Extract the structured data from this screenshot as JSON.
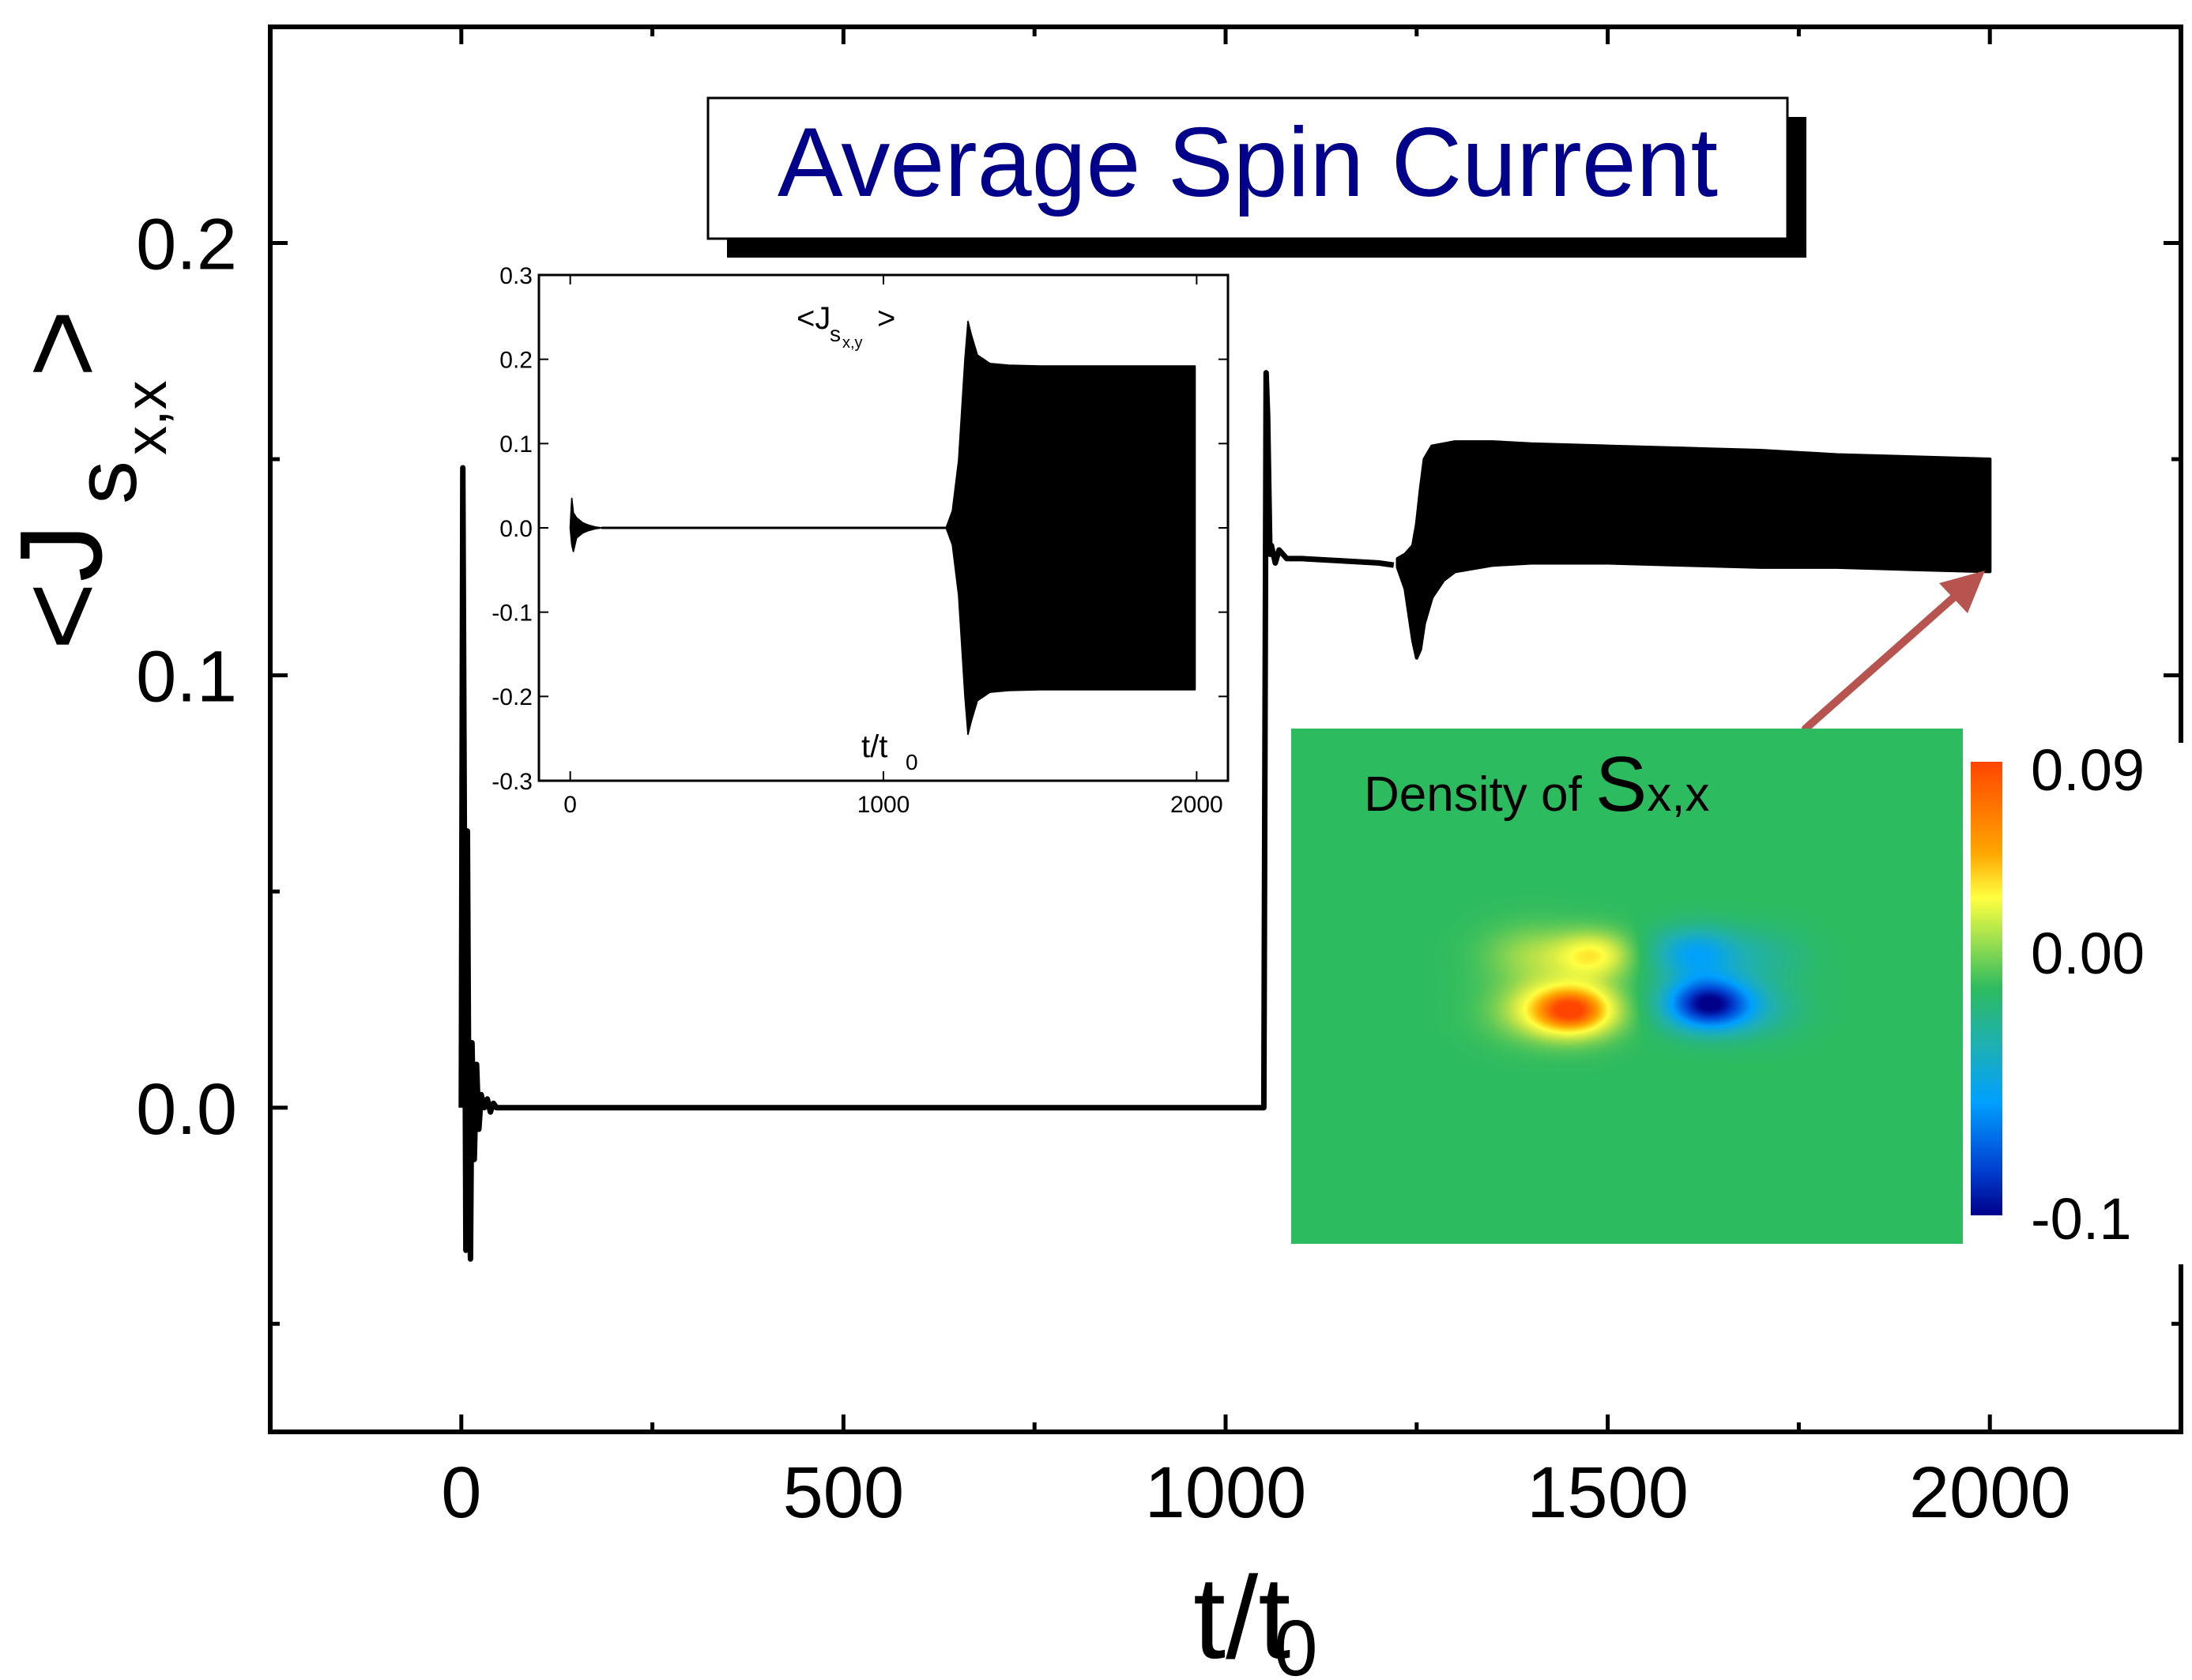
{
  "chart_data": [
    {
      "type": "line",
      "role": "main",
      "title": "Average Spin Current",
      "xlabel": "t/t",
      "xlabel_sub": "0",
      "ylabel": "<J",
      "ylabel_sub": "s",
      "ylabel_subsub": "x,x",
      "ylabel_close": ">",
      "xlim": [
        -250,
        2250
      ],
      "ylim": [
        -0.075,
        0.25
      ],
      "xticks": [
        0,
        500,
        1000,
        1500,
        2000
      ],
      "xtick_labels": [
        "0",
        "500",
        "1000",
        "1500",
        "2000"
      ],
      "yticks": [
        0.0,
        0.1,
        0.2
      ],
      "ytick_labels": [
        "0.0",
        "0.1",
        "0.2"
      ],
      "y_minor_ticks": [
        -0.05,
        0.05,
        0.15
      ],
      "x_minor_ticks": [
        250,
        750,
        1250,
        1750
      ],
      "series": [
        {
          "name": "<Js x,x>",
          "color": "#000000",
          "segments": [
            {
              "kind": "line",
              "x": [
                0,
                2,
                4,
                6,
                8,
                10,
                12,
                14,
                17,
                20,
                23,
                26,
                30,
                34,
                38,
                42,
                46,
                50,
                55,
                60,
                70,
                80,
                100,
                150,
                500,
                900,
                1040,
                1045,
                1048,
                1050,
                1053,
                1055,
                1058,
                1060,
                1065,
                1070,
                1080,
                1100,
                1150,
                1200,
                1220
              ],
              "y": [
                0.0,
                0.148,
                0.06,
                -0.033,
                0.064,
                -0.01,
                -0.035,
                0.015,
                -0.012,
                0.01,
                -0.005,
                0.003,
                0.0,
                0.002,
                -0.001,
                0.001,
                0.0,
                0.0,
                0.0,
                0.0,
                0.0,
                0.0,
                0.0,
                0.0,
                0.0,
                0.0,
                0.0,
                0.0,
                0.0,
                0.0,
                0.17,
                0.16,
                0.128,
                0.13,
                0.126,
                0.129,
                0.127,
                0.127,
                0.1265,
                0.126,
                0.1255
              ]
            },
            {
              "kind": "band",
              "x": [
                1225,
                1235,
                1245,
                1250,
                1255,
                1260,
                1270,
                1285,
                1300,
                1350,
                1400,
                1500,
                1600,
                1700,
                1800,
                1900,
                2000
              ],
              "y_upper": [
                0.127,
                0.128,
                0.13,
                0.135,
                0.143,
                0.15,
                0.153,
                0.1535,
                0.154,
                0.154,
                0.1535,
                0.153,
                0.1525,
                0.152,
                0.151,
                0.1505,
                0.15
              ],
              "y_lower": [
                0.125,
                0.12,
                0.108,
                0.104,
                0.106,
                0.112,
                0.118,
                0.122,
                0.124,
                0.1255,
                0.126,
                0.126,
                0.1255,
                0.125,
                0.125,
                0.1245,
                0.124
              ]
            }
          ]
        }
      ],
      "colors": {
        "line": "#000000",
        "title_text": "#00008b",
        "arrow": "#b85450"
      }
    },
    {
      "type": "line",
      "role": "inset",
      "ylabel": "<J",
      "ylabel_sub": "s",
      "ylabel_subsub": "x,y",
      "ylabel_close": ">",
      "xlabel": "t/t",
      "xlabel_sub": "0",
      "xlim": [
        -100,
        2100
      ],
      "ylim": [
        -0.3,
        0.3
      ],
      "xticks": [
        0,
        1000,
        2000
      ],
      "xtick_labels": [
        "0",
        "1000",
        "2000"
      ],
      "yticks": [
        -0.3,
        -0.2,
        -0.1,
        0.0,
        0.1,
        0.2,
        0.3
      ],
      "ytick_labels": [
        "-0.3",
        "-0.2",
        "-0.1",
        "0.0",
        "0.1",
        "0.2",
        "0.3"
      ],
      "series": [
        {
          "name": "<Js x,y>",
          "color": "#000000",
          "segments": [
            {
              "kind": "band",
              "x": [
                0,
                5,
                10,
                20,
                40,
                60,
                80,
                100
              ],
              "y_upper": [
                0.0,
                0.035,
                0.018,
                0.012,
                0.006,
                0.003,
                0.001,
                0.0
              ],
              "y_lower": [
                0.0,
                -0.02,
                -0.028,
                -0.012,
                -0.006,
                -0.003,
                -0.001,
                0.0
              ]
            },
            {
              "kind": "line",
              "x": [
                100,
                500,
                1000,
                1200
              ],
              "y": [
                0.0,
                0.0,
                0.0,
                0.0
              ]
            },
            {
              "kind": "band",
              "x": [
                1200,
                1220,
                1240,
                1260,
                1270,
                1280,
                1300,
                1340,
                1400,
                1500,
                1700,
                1900,
                1995
              ],
              "y_upper": [
                0.0,
                0.02,
                0.08,
                0.2,
                0.245,
                0.23,
                0.205,
                0.195,
                0.193,
                0.192,
                0.192,
                0.192,
                0.192
              ],
              "y_lower": [
                0.0,
                -0.02,
                -0.08,
                -0.2,
                -0.245,
                -0.23,
                -0.205,
                -0.195,
                -0.193,
                -0.192,
                -0.192,
                -0.192,
                -0.192
              ]
            }
          ]
        }
      ]
    },
    {
      "type": "heatmap",
      "role": "inset-density",
      "title_prefix": "Density of ",
      "title_symbol": "S",
      "title_suffix": "x,x",
      "colorbar_ticks": [
        "0.09",
        "0.00",
        "-0.1"
      ],
      "colorbar_range": [
        -0.1,
        0.09
      ],
      "background_color": "#2dbb5f",
      "blobs": [
        {
          "u": 0.42,
          "v": 0.546,
          "su": 0.045,
          "sv": 0.035,
          "value": 0.085
        },
        {
          "u": 0.62,
          "v": 0.534,
          "su": 0.045,
          "sv": 0.035,
          "value": -0.1
        },
        {
          "u": 0.45,
          "v": 0.44,
          "su": 0.04,
          "sv": 0.032,
          "value": 0.045
        },
        {
          "u": 0.6,
          "v": 0.435,
          "su": 0.045,
          "sv": 0.035,
          "value": -0.045
        },
        {
          "u": 0.36,
          "v": 0.44,
          "su": 0.05,
          "sv": 0.04,
          "value": 0.022
        },
        {
          "u": 0.36,
          "v": 0.546,
          "su": 0.05,
          "sv": 0.04,
          "value": 0.022
        },
        {
          "u": 0.7,
          "v": 0.44,
          "su": 0.05,
          "sv": 0.04,
          "value": -0.015
        },
        {
          "u": 0.7,
          "v": 0.546,
          "su": 0.05,
          "sv": 0.04,
          "value": -0.015
        }
      ]
    }
  ]
}
